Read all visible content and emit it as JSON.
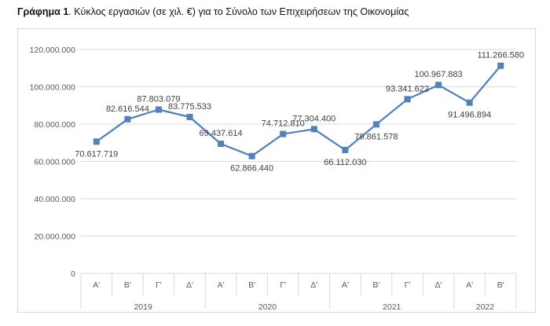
{
  "caption": {
    "bold": "Γράφημα 1",
    "text": ". Κύκλος εργασιών (σε χιλ. €) για το Σύνολο των Επιχειρήσεων της Οικονομίας"
  },
  "colors": {
    "line": "#4e7fbe",
    "marker": "#4f81bd",
    "grid": "#d9d9d9"
  },
  "chart_data": {
    "type": "line",
    "title": "",
    "xlabel": "",
    "ylabel": "",
    "ylim": [
      0,
      120000000
    ],
    "yticks": [
      0,
      20000000,
      40000000,
      60000000,
      80000000,
      100000000,
      120000000
    ],
    "ytick_labels": [
      "0",
      "20.000.000",
      "40.000.000",
      "60.000.000",
      "80.000.000",
      "100.000.000",
      "120.000.000"
    ],
    "grid": true,
    "legend": "none",
    "categories": [
      "Α'",
      "Β'",
      "Γ'",
      "Δ'",
      "Α'",
      "Β'",
      "Γ'",
      "Δ'",
      "Α'",
      "Β'",
      "Γ'",
      "Δ'",
      "Α'",
      "Β'"
    ],
    "groups": [
      {
        "label": "2019",
        "count": 4
      },
      {
        "label": "2020",
        "count": 4
      },
      {
        "label": "2021",
        "count": 4
      },
      {
        "label": "2022",
        "count": 2
      }
    ],
    "series": [
      {
        "values": [
          70617719,
          82616544,
          87803079,
          83775533,
          69437614,
          62866440,
          74712810,
          77304400,
          66112030,
          79861578,
          93341622,
          100967883,
          91496894,
          111266580
        ],
        "labels": [
          "70.617.719",
          "82.616.544",
          "87.803.079",
          "83.775.533",
          "69.437.614",
          "62.866.440",
          "74.712.810",
          "77.304.400",
          "66.112.030",
          "79.861.578",
          "93.341.622",
          "100.967.883",
          "91.496.894",
          "111.266.580"
        ],
        "label_pos": [
          "below",
          "above",
          "above",
          "above",
          "above",
          "below",
          "above",
          "above",
          "below",
          "below",
          "above",
          "above",
          "below",
          "above"
        ]
      }
    ]
  }
}
